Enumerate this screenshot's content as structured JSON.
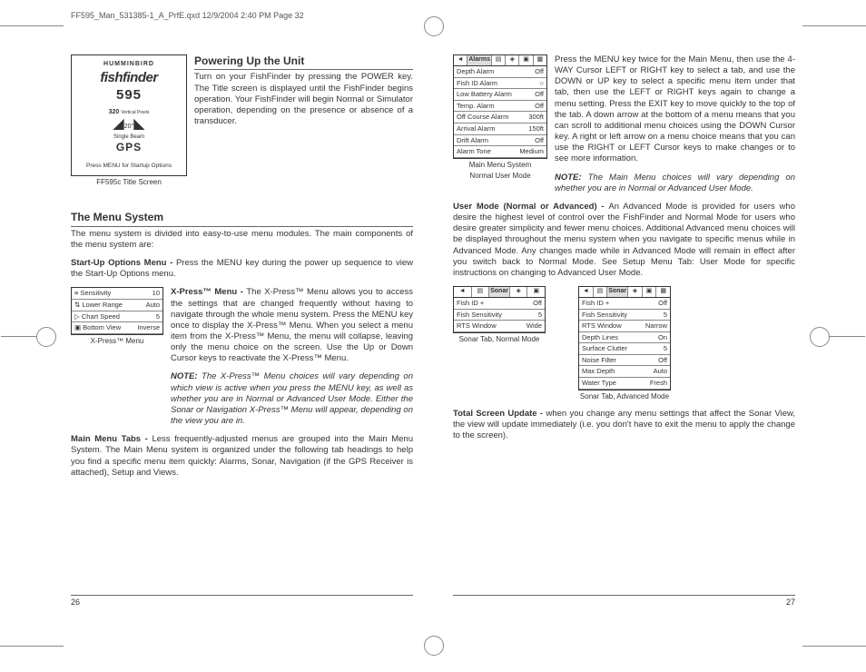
{
  "header": "FF595_Man_531385-1_A_PrfE.qxd  12/9/2004  2:40 PM  Page 32",
  "left": {
    "titleScreen": {
      "brand1": "HUMMINBIRD",
      "brand2": "fishfinder",
      "brand3": "595",
      "spec1": "320",
      "spec2": "Vertical Pixels",
      "spec3": "20°",
      "spec4": "Single Beam",
      "gps": "GPS",
      "press": "Press MENU for Startup Options",
      "caption": "FF595c Title Screen"
    },
    "sec1": {
      "title": "Powering Up the Unit",
      "p1": "Turn on your FishFinder by pressing the POWER key. The Title screen is displayed until the FishFinder begins operation. Your FishFinder will begin Normal or Simulator operation, depending on the presence or absence of a transducer."
    },
    "sec2": {
      "title": "The Menu System",
      "p1": "The menu system is divided into easy-to-use menu modules. The main components of the menu system are:",
      "p2": "Start-Up Options Menu - Press the MENU key during the power up sequence to view the Start-Up Options menu.",
      "xpressCaption": "X-Press™ Menu",
      "xpress": {
        "rows": [
          [
            "≡ Sensitivity",
            "10"
          ],
          [
            "⇅ Lower Range",
            "Auto"
          ],
          [
            "▷ Chart Speed",
            "5"
          ],
          [
            "▣ Bottom View",
            "Inverse"
          ]
        ],
        "bar": "20"
      },
      "p3": "X-Press™ Menu - The X-Press™ Menu allows you to access the settings that are changed frequently without having to navigate through the whole menu system. Press the MENU key once to display the X-Press™ Menu. When you select a menu item from the X-Press™ Menu, the menu will collapse, leaving only the menu choice on the screen. Use the Up or Down Cursor keys to reactivate the X-Press™ Menu.",
      "note1": "NOTE: The X-Press™ Menu choices will vary depending on which view is active when you press the MENU key, as well as whether you are in Normal or Advanced User Mode. Either the Sonar or Navigation X-Press™ Menu will appear, depending on the view you are in.",
      "p4": "Main Menu Tabs - Less frequently-adjusted menus are grouped into the Main Menu System. The Main Menu system is organized under the following tab headings to help you find a specific menu item quickly: Alarms, Sonar, Navigation (if the GPS Receiver is attached), Setup and Views."
    },
    "pageNum": "26"
  },
  "right": {
    "mainMenu": {
      "tabs": [
        "◄",
        "Alarms",
        "▤",
        "◈",
        "▣",
        "▦"
      ],
      "rows": [
        [
          "Depth Alarm",
          "Off"
        ],
        [
          "Fish ID Alarm",
          "○"
        ],
        [
          "Low Battery Alarm",
          "Off"
        ],
        [
          "Temp. Alarm",
          "Off"
        ],
        [
          "Off Course Alarm",
          "300ft"
        ],
        [
          "Arrival Alarm",
          "150ft"
        ],
        [
          "Drift Alarm",
          "Off"
        ],
        [
          "Alarm Tone",
          "Medium"
        ]
      ],
      "caption1": "Main Menu System",
      "caption2": "Normal User Mode"
    },
    "p1": "Press the MENU key twice for the Main Menu, then use the 4-WAY Cursor LEFT or RIGHT key to select a tab, and use the DOWN or UP key to select a specific menu item under that tab, then use the LEFT or RIGHT keys again to change a menu setting. Press the EXIT key to move quickly to the top of the tab. A down arrow at the bottom of a menu means that you can scroll to additional menu choices using the DOWN Cursor key. A right or left arrow on a menu choice means that you can use the RIGHT or LEFT Cursor keys to make changes or to see more information.",
    "note1": "NOTE: The Main Menu choices will vary depending on whether you are in Normal or Advanced User Mode.",
    "p2": "User Mode (Normal or Advanced) - An Advanced Mode is provided for users who desire the highest level of control over the FishFinder and Normal Mode for users who desire greater simplicity and fewer menu choices. Additional Advanced menu choices will be displayed throughout the menu system when you navigate to specific menus while in Advanced Mode. Any changes made while in Advanced Mode will remain in effect after you switch back to Normal Mode. See Setup Menu Tab: User Mode for specific instructions on changing to Advanced User Mode.",
    "sonarNormal": {
      "tabs": [
        "◄",
        "▤",
        "Sonar",
        "◈",
        "▣"
      ],
      "rows": [
        [
          "Fish ID +",
          "Off"
        ],
        [
          "Fish Sensitivity",
          "5"
        ],
        [
          "RTS Window",
          "Wide"
        ]
      ],
      "caption": "Sonar Tab, Normal Mode"
    },
    "sonarAdv": {
      "tabs": [
        "◄",
        "▤",
        "Sonar",
        "◈",
        "▣",
        "▦"
      ],
      "rows": [
        [
          "Fish ID +",
          "Off"
        ],
        [
          "Fish Sensitivity",
          "5"
        ],
        [
          "RTS Window",
          "Narrow"
        ],
        [
          "Depth Lines",
          "On"
        ],
        [
          "Surface Clutter",
          "5"
        ],
        [
          "Noise Filter",
          "Off"
        ],
        [
          "Max Depth",
          "Auto"
        ],
        [
          "Water Type",
          "Fresh"
        ]
      ],
      "caption": "Sonar Tab, Advanced Mode"
    },
    "p3": "Total Screen Update - when you change any menu settings that affect the Sonar View, the view will update immediately (i.e. you don't have to exit the menu to apply the change to the screen).",
    "pageNum": "27"
  }
}
